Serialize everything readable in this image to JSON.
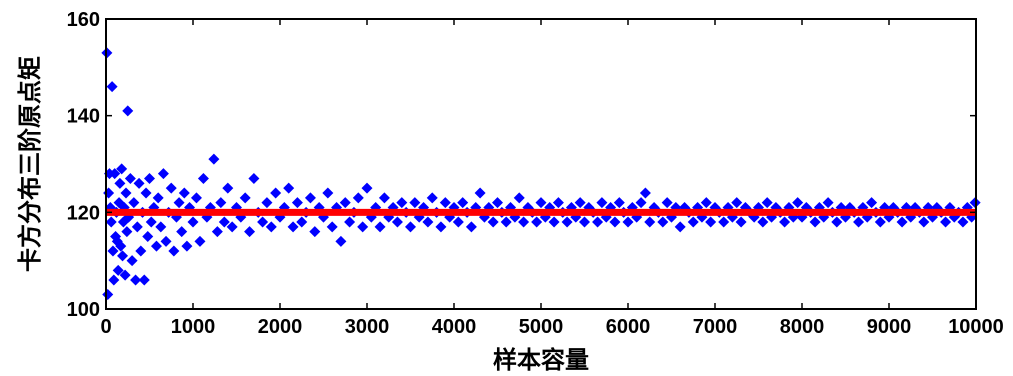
{
  "chart_data": {
    "type": "scatter",
    "xlabel": "样本容量",
    "ylabel": "卡方分布三阶原点矩",
    "xlim": [
      0,
      10000
    ],
    "ylim": [
      100,
      160
    ],
    "xticks": [
      0,
      1000,
      2000,
      3000,
      4000,
      5000,
      6000,
      7000,
      8000,
      9000,
      10000
    ],
    "yticks": [
      100,
      120,
      140,
      160
    ],
    "grid": false,
    "legend": "none",
    "colors": {
      "points": "#0000ff",
      "reference": "#ff0000"
    },
    "reference_line": {
      "y": 120
    },
    "series": [
      {
        "marker": "diamond",
        "points": [
          [
            10,
            153
          ],
          [
            20,
            103
          ],
          [
            30,
            124
          ],
          [
            40,
            128
          ],
          [
            50,
            121
          ],
          [
            60,
            118
          ],
          [
            70,
            146
          ],
          [
            80,
            112
          ],
          [
            90,
            106
          ],
          [
            100,
            128
          ],
          [
            110,
            115
          ],
          [
            120,
            120
          ],
          [
            130,
            114
          ],
          [
            140,
            108
          ],
          [
            150,
            122
          ],
          [
            160,
            126
          ],
          [
            170,
            113
          ],
          [
            180,
            129
          ],
          [
            190,
            111
          ],
          [
            200,
            118
          ],
          [
            210,
            121
          ],
          [
            220,
            107
          ],
          [
            230,
            124
          ],
          [
            240,
            116
          ],
          [
            250,
            141
          ],
          [
            260,
            119
          ],
          [
            280,
            127
          ],
          [
            300,
            110
          ],
          [
            320,
            122
          ],
          [
            340,
            106
          ],
          [
            360,
            117
          ],
          [
            380,
            126
          ],
          [
            400,
            112
          ],
          [
            420,
            120
          ],
          [
            440,
            106
          ],
          [
            460,
            124
          ],
          [
            480,
            115
          ],
          [
            500,
            127
          ],
          [
            520,
            118
          ],
          [
            550,
            121
          ],
          [
            580,
            113
          ],
          [
            600,
            123
          ],
          [
            630,
            117
          ],
          [
            660,
            128
          ],
          [
            690,
            114
          ],
          [
            720,
            120
          ],
          [
            750,
            125
          ],
          [
            780,
            112
          ],
          [
            810,
            119
          ],
          [
            840,
            122
          ],
          [
            870,
            116
          ],
          [
            900,
            124
          ],
          [
            930,
            113
          ],
          [
            960,
            121
          ],
          [
            1000,
            118
          ],
          [
            1040,
            123
          ],
          [
            1080,
            114
          ],
          [
            1120,
            127
          ],
          [
            1160,
            119
          ],
          [
            1200,
            121
          ],
          [
            1240,
            131
          ],
          [
            1280,
            116
          ],
          [
            1320,
            122
          ],
          [
            1360,
            118
          ],
          [
            1400,
            125
          ],
          [
            1450,
            117
          ],
          [
            1500,
            121
          ],
          [
            1550,
            119
          ],
          [
            1600,
            123
          ],
          [
            1650,
            116
          ],
          [
            1700,
            127
          ],
          [
            1750,
            120
          ],
          [
            1800,
            118
          ],
          [
            1850,
            122
          ],
          [
            1900,
            117
          ],
          [
            1950,
            124
          ],
          [
            2000,
            119
          ],
          [
            2050,
            121
          ],
          [
            2100,
            125
          ],
          [
            2150,
            117
          ],
          [
            2200,
            122
          ],
          [
            2250,
            118
          ],
          [
            2300,
            120
          ],
          [
            2350,
            123
          ],
          [
            2400,
            116
          ],
          [
            2450,
            121
          ],
          [
            2500,
            119
          ],
          [
            2550,
            124
          ],
          [
            2600,
            117
          ],
          [
            2650,
            121
          ],
          [
            2700,
            114
          ],
          [
            2750,
            122
          ],
          [
            2800,
            118
          ],
          [
            2850,
            120
          ],
          [
            2900,
            123
          ],
          [
            2950,
            117
          ],
          [
            3000,
            125
          ],
          [
            3050,
            119
          ],
          [
            3100,
            121
          ],
          [
            3150,
            117
          ],
          [
            3200,
            123
          ],
          [
            3250,
            119
          ],
          [
            3300,
            121
          ],
          [
            3350,
            118
          ],
          [
            3400,
            122
          ],
          [
            3450,
            120
          ],
          [
            3500,
            117
          ],
          [
            3550,
            122
          ],
          [
            3600,
            119
          ],
          [
            3650,
            121
          ],
          [
            3700,
            118
          ],
          [
            3750,
            123
          ],
          [
            3800,
            120
          ],
          [
            3850,
            117
          ],
          [
            3900,
            122
          ],
          [
            3950,
            119
          ],
          [
            4000,
            121
          ],
          [
            4050,
            118
          ],
          [
            4100,
            122
          ],
          [
            4150,
            120
          ],
          [
            4200,
            117
          ],
          [
            4250,
            121
          ],
          [
            4300,
            124
          ],
          [
            4350,
            119
          ],
          [
            4400,
            121
          ],
          [
            4450,
            118
          ],
          [
            4500,
            122
          ],
          [
            4550,
            120
          ],
          [
            4600,
            118
          ],
          [
            4650,
            121
          ],
          [
            4700,
            119
          ],
          [
            4750,
            123
          ],
          [
            4800,
            118
          ],
          [
            4850,
            121
          ],
          [
            4900,
            120
          ],
          [
            4950,
            118
          ],
          [
            5000,
            122
          ],
          [
            5050,
            119
          ],
          [
            5100,
            121
          ],
          [
            5150,
            118
          ],
          [
            5200,
            122
          ],
          [
            5250,
            120
          ],
          [
            5300,
            118
          ],
          [
            5350,
            121
          ],
          [
            5400,
            119
          ],
          [
            5450,
            122
          ],
          [
            5500,
            118
          ],
          [
            5550,
            121
          ],
          [
            5600,
            120
          ],
          [
            5650,
            118
          ],
          [
            5700,
            122
          ],
          [
            5750,
            119
          ],
          [
            5800,
            121
          ],
          [
            5850,
            118
          ],
          [
            5900,
            122
          ],
          [
            5950,
            120
          ],
          [
            6000,
            118
          ],
          [
            6050,
            121
          ],
          [
            6100,
            119
          ],
          [
            6150,
            122
          ],
          [
            6200,
            124
          ],
          [
            6250,
            118
          ],
          [
            6300,
            121
          ],
          [
            6350,
            120
          ],
          [
            6400,
            118
          ],
          [
            6450,
            122
          ],
          [
            6500,
            119
          ],
          [
            6550,
            121
          ],
          [
            6600,
            117
          ],
          [
            6650,
            121
          ],
          [
            6700,
            120
          ],
          [
            6750,
            118
          ],
          [
            6800,
            121
          ],
          [
            6850,
            119
          ],
          [
            6900,
            122
          ],
          [
            6950,
            118
          ],
          [
            7000,
            121
          ],
          [
            7050,
            120
          ],
          [
            7100,
            118
          ],
          [
            7150,
            121
          ],
          [
            7200,
            119
          ],
          [
            7250,
            122
          ],
          [
            7300,
            118
          ],
          [
            7350,
            121
          ],
          [
            7400,
            120
          ],
          [
            7450,
            119
          ],
          [
            7500,
            121
          ],
          [
            7550,
            118
          ],
          [
            7600,
            122
          ],
          [
            7650,
            119
          ],
          [
            7700,
            121
          ],
          [
            7750,
            120
          ],
          [
            7800,
            118
          ],
          [
            7850,
            121
          ],
          [
            7900,
            119
          ],
          [
            7950,
            122
          ],
          [
            8000,
            119
          ],
          [
            8050,
            121
          ],
          [
            8100,
            120
          ],
          [
            8150,
            118
          ],
          [
            8200,
            121
          ],
          [
            8250,
            119
          ],
          [
            8300,
            122
          ],
          [
            8350,
            120
          ],
          [
            8400,
            118
          ],
          [
            8450,
            121
          ],
          [
            8500,
            119
          ],
          [
            8550,
            121
          ],
          [
            8600,
            120
          ],
          [
            8650,
            118
          ],
          [
            8700,
            121
          ],
          [
            8750,
            119
          ],
          [
            8800,
            122
          ],
          [
            8850,
            120
          ],
          [
            8900,
            118
          ],
          [
            8950,
            121
          ],
          [
            9000,
            119
          ],
          [
            9050,
            121
          ],
          [
            9100,
            120
          ],
          [
            9150,
            118
          ],
          [
            9200,
            121
          ],
          [
            9250,
            119
          ],
          [
            9300,
            121
          ],
          [
            9350,
            120
          ],
          [
            9400,
            118
          ],
          [
            9450,
            121
          ],
          [
            9500,
            119
          ],
          [
            9550,
            121
          ],
          [
            9600,
            120
          ],
          [
            9650,
            118
          ],
          [
            9700,
            121
          ],
          [
            9750,
            119
          ],
          [
            9800,
            120
          ],
          [
            9850,
            118
          ],
          [
            9900,
            121
          ],
          [
            9950,
            119
          ],
          [
            9990,
            122
          ]
        ]
      }
    ]
  }
}
